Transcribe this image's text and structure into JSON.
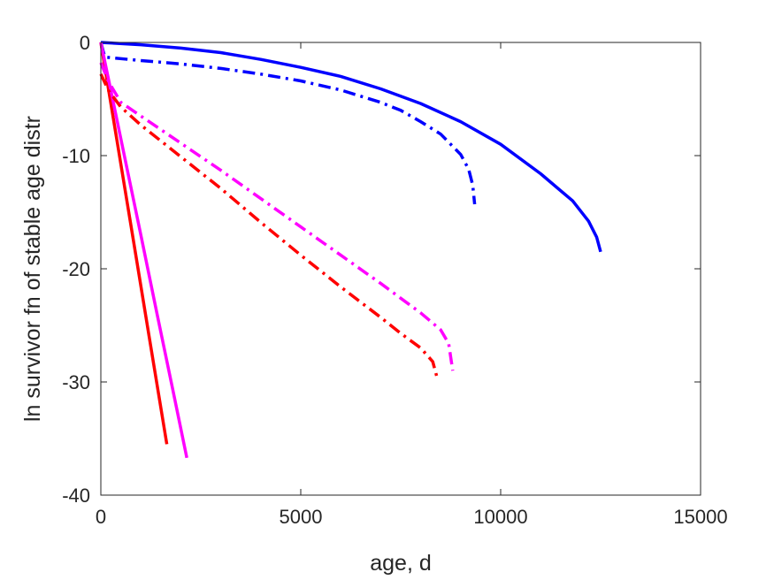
{
  "chart_data": {
    "type": "line",
    "title": "",
    "xlabel": "age, d",
    "ylabel": "ln survivor fn of stable age distr",
    "xlim": [
      0,
      15000
    ],
    "ylim": [
      -40,
      0
    ],
    "xticks": [
      0,
      5000,
      10000,
      15000
    ],
    "yticks": [
      0,
      -10,
      -20,
      -30,
      -40
    ],
    "xtick_labels": [
      "0",
      "5000",
      "10000",
      "15000"
    ],
    "ytick_labels": [
      "0",
      "-10",
      "-20",
      "-30",
      "-40"
    ],
    "grid": false,
    "legend": "none",
    "series": [
      {
        "color": "#0000ff",
        "style": "solid",
        "x": [
          0,
          1000,
          2000,
          3000,
          4000,
          5000,
          6000,
          7000,
          8000,
          9000,
          10000,
          11000,
          11800,
          12200,
          12400,
          12500
        ],
        "y": [
          0,
          -0.2,
          -0.5,
          -0.9,
          -1.5,
          -2.2,
          -3.0,
          -4.1,
          -5.4,
          -7.0,
          -9.0,
          -11.6,
          -14.0,
          -15.8,
          -17.2,
          -18.5
        ]
      },
      {
        "color": "#0000ff",
        "style": "dashdot",
        "x": [
          0,
          100,
          1000,
          2000,
          3000,
          4000,
          5000,
          6000,
          7000,
          7500,
          8000,
          8500,
          9000,
          9200,
          9300,
          9350
        ],
        "y": [
          0,
          -1.3,
          -1.6,
          -1.9,
          -2.3,
          -2.8,
          -3.4,
          -4.2,
          -5.3,
          -6.0,
          -7.0,
          -8.1,
          -9.9,
          -11.2,
          -12.6,
          -14.3
        ]
      },
      {
        "color": "#ff0000",
        "style": "solid",
        "x": [
          0,
          200,
          400,
          800,
          1200,
          1650
        ],
        "y": [
          0,
          -4.3,
          -8.6,
          -17.2,
          -25.8,
          -35.5
        ]
      },
      {
        "color": "#ff00ff",
        "style": "solid",
        "x": [
          0,
          300,
          600,
          1000,
          1400,
          1800,
          2150
        ],
        "y": [
          0,
          -5.1,
          -10.2,
          -17.0,
          -23.9,
          -30.7,
          -36.7
        ]
      },
      {
        "color": "#ff0000",
        "style": "dashdot",
        "x": [
          0,
          200,
          500,
          1000,
          2000,
          3000,
          4000,
          5000,
          6000,
          7000,
          7500,
          8000,
          8300,
          8400
        ],
        "y": [
          -2.8,
          -4.3,
          -5.7,
          -7.3,
          -10.1,
          -12.9,
          -15.9,
          -18.8,
          -21.6,
          -24.3,
          -25.7,
          -27.0,
          -28.2,
          -29.5
        ]
      },
      {
        "color": "#ff00ff",
        "style": "dashdot",
        "x": [
          0,
          200,
          500,
          1000,
          2000,
          3000,
          4000,
          5000,
          6000,
          7000,
          7500,
          8000,
          8500,
          8700,
          8800
        ],
        "y": [
          -1.8,
          -3.5,
          -5.3,
          -6.5,
          -8.9,
          -11.3,
          -13.8,
          -16.3,
          -18.8,
          -21.3,
          -22.6,
          -23.9,
          -25.4,
          -26.6,
          -29.0
        ]
      }
    ]
  }
}
